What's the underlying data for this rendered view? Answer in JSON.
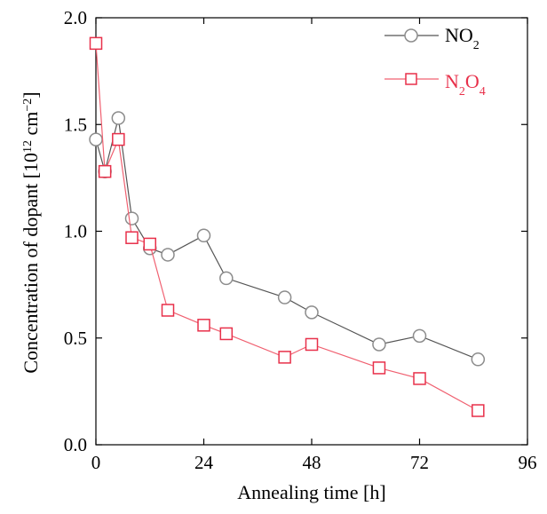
{
  "chart_data": {
    "type": "line",
    "xlabel": "Annealing time [h]",
    "ylabel": {
      "main": "Concentration of dopant [10",
      "exp1": "12",
      "mid": " cm",
      "exp2": "−2",
      "end": "]"
    },
    "xlim": [
      0,
      96
    ],
    "ylim": [
      0.0,
      2.0
    ],
    "xticks": [
      0,
      24,
      48,
      72,
      96
    ],
    "xtick_labels": [
      "0",
      "24",
      "48",
      "72",
      "96"
    ],
    "yticks": [
      0.0,
      0.5,
      1.0,
      1.5,
      2.0
    ],
    "ytick_labels": [
      "0.0",
      "0.5",
      "1.0",
      "1.5",
      "2.0"
    ],
    "grid": false,
    "legend_position": "top-right",
    "series": [
      {
        "name": "NO2",
        "label": {
          "base": "NO",
          "sub": "2"
        },
        "marker": "circle",
        "color": "#555555",
        "marker_color": "#8c8c8c",
        "x": [
          0,
          2,
          5,
          8,
          12,
          16,
          24,
          29,
          42,
          48,
          63,
          72,
          85
        ],
        "y": [
          1.43,
          1.28,
          1.53,
          1.06,
          0.92,
          0.89,
          0.98,
          0.78,
          0.69,
          0.62,
          0.47,
          0.51,
          0.4
        ]
      },
      {
        "name": "N2O4",
        "label": {
          "b1": "N",
          "s1": "2",
          "b2": "O",
          "s2": "4"
        },
        "marker": "square",
        "color": "#f06070",
        "marker_color": "#e8304a",
        "x": [
          0,
          2,
          5,
          8,
          12,
          16,
          24,
          29,
          42,
          48,
          63,
          72,
          85
        ],
        "y": [
          1.88,
          1.28,
          1.43,
          0.97,
          0.94,
          0.63,
          0.56,
          0.52,
          0.41,
          0.47,
          0.36,
          0.31,
          0.16
        ]
      }
    ]
  }
}
